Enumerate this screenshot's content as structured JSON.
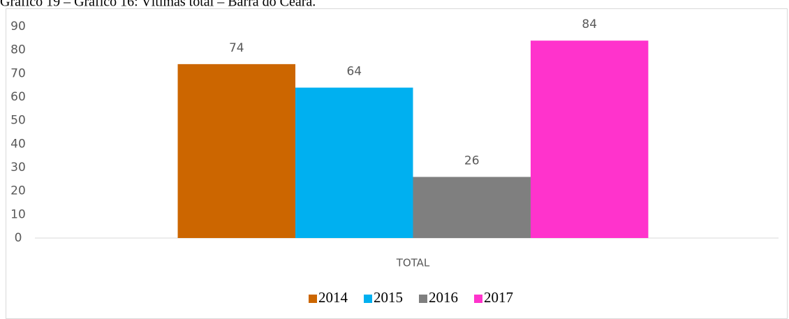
{
  "chart_data": {
    "type": "bar",
    "title": "Gráfico 19 – Gráfico 16: Vítimas total – Barra do Ceará.",
    "categories": [
      "TOTAL"
    ],
    "series": [
      {
        "name": "2014",
        "color": "#CC6600",
        "values": [
          74
        ]
      },
      {
        "name": "2015",
        "color": "#00B0F0",
        "values": [
          64
        ]
      },
      {
        "name": "2016",
        "color": "#7F7F7F",
        "values": [
          26
        ]
      },
      {
        "name": "2017",
        "color": "#FF33CC",
        "values": [
          84
        ]
      }
    ],
    "ylim": [
      0,
      90
    ],
    "yticks": [
      0,
      10,
      20,
      30,
      40,
      50,
      60,
      70,
      80,
      90
    ],
    "grid": false,
    "legend": "bottom"
  }
}
